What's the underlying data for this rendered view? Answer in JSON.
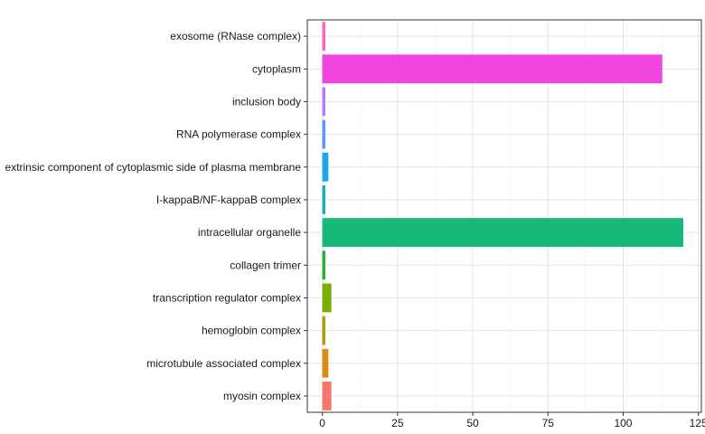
{
  "chart_data": {
    "type": "bar",
    "orientation": "horizontal",
    "categories": [
      "exosome (RNase complex)",
      "cytoplasm",
      "inclusion body",
      "RNA polymerase complex",
      "extrinsic component of cytoplasmic side of plasma membrane",
      "I-kappaB/NF-kappaB complex",
      "intracellular organelle",
      "collagen trimer",
      "transcription regulator complex",
      "hemoglobin complex",
      "microtubule associated complex",
      "myosin complex"
    ],
    "values": [
      1,
      113,
      1,
      1,
      2,
      1,
      120,
      1,
      3,
      1,
      2,
      3
    ],
    "colors": [
      "#FF61C3",
      "#F146DE",
      "#B77BFF",
      "#5E95F5",
      "#1DA6E6",
      "#1AAFAF",
      "#18B87A",
      "#2BAF32",
      "#7CAE00",
      "#B09A0C",
      "#DB8B14",
      "#F8766D"
    ],
    "xlim": [
      -5,
      126
    ],
    "xticks": [
      0,
      25,
      50,
      75,
      100,
      125
    ],
    "title": "",
    "xlabel": "",
    "ylabel": "",
    "grid": true,
    "legend": "none"
  }
}
